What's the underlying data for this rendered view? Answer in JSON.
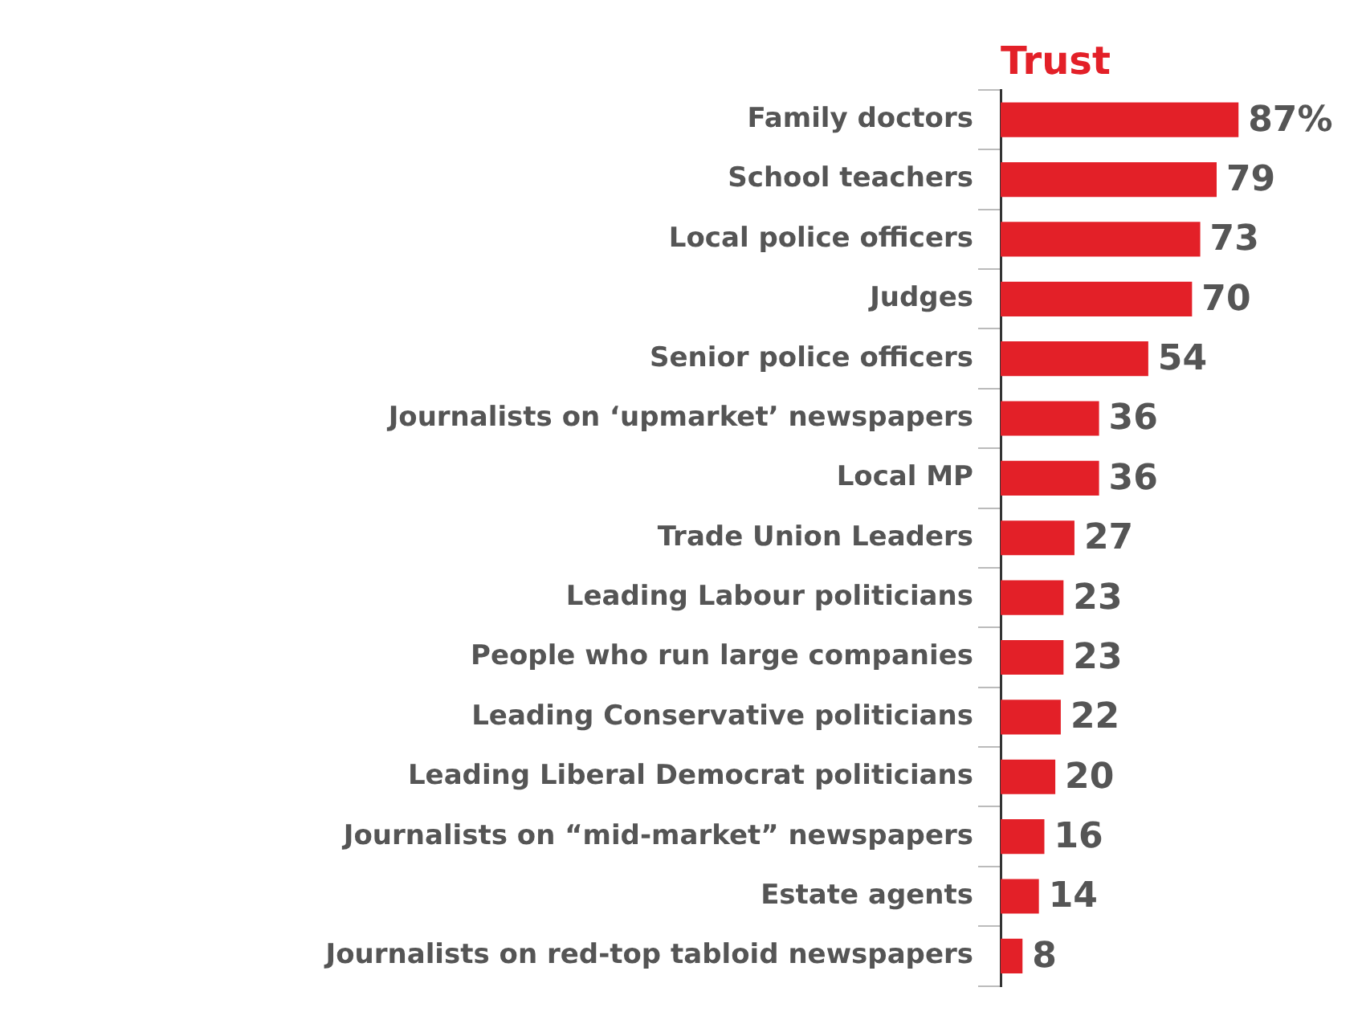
{
  "chart_data": {
    "type": "bar",
    "orientation": "horizontal",
    "title": "Trust",
    "categories": [
      "Family doctors",
      "School teachers",
      "Local police officers",
      "Judges",
      "Senior police officers",
      "Journalists on ‘upmarket’ newspapers",
      "Local MP",
      "Trade Union Leaders",
      "Leading Labour politicians",
      "People who run large companies",
      "Leading Conservative politicians",
      "Leading Liberal Democrat politicians",
      "Journalists on “mid-market” newspapers",
      "Estate agents",
      "Journalists on red-top tabloid newspapers"
    ],
    "values": [
      87,
      79,
      73,
      70,
      54,
      36,
      36,
      27,
      23,
      23,
      22,
      20,
      16,
      14,
      8
    ],
    "value_labels": [
      "87%",
      "79",
      "73",
      "70",
      "54",
      "36",
      "36",
      "27",
      "23",
      "23",
      "22",
      "20",
      "16",
      "14",
      "8"
    ],
    "color": "#e32028"
  }
}
